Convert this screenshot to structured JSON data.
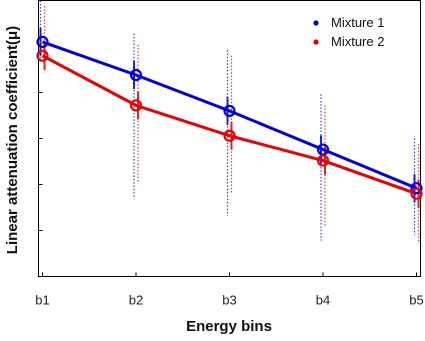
{
  "chart_data": {
    "type": "line",
    "title": "",
    "xlabel": "Energy bins",
    "ylabel": "Linear attenuation coefficient(μ)",
    "categories": [
      "b1",
      "b2",
      "b3",
      "b4",
      "b5"
    ],
    "ylim": [
      0,
      1
    ],
    "y_tick_labels_shown": false,
    "grid": false,
    "legend_position": "top-right",
    "series": [
      {
        "name": "Mixture 1",
        "color": "#0000ee",
        "values": [
          0.85,
          0.73,
          0.6,
          0.46,
          0.32
        ],
        "spread_low": [
          0.78,
          0.28,
          0.22,
          0.13,
          0.15
        ],
        "spread_high": [
          1.0,
          0.88,
          0.82,
          0.66,
          0.5
        ]
      },
      {
        "name": "Mixture 2",
        "color": "#ee0000",
        "values": [
          0.8,
          0.62,
          0.51,
          0.42,
          0.3
        ],
        "spread_low": [
          0.74,
          0.34,
          0.3,
          0.18,
          0.12
        ],
        "spread_high": [
          0.98,
          0.84,
          0.8,
          0.62,
          0.48
        ]
      }
    ]
  }
}
